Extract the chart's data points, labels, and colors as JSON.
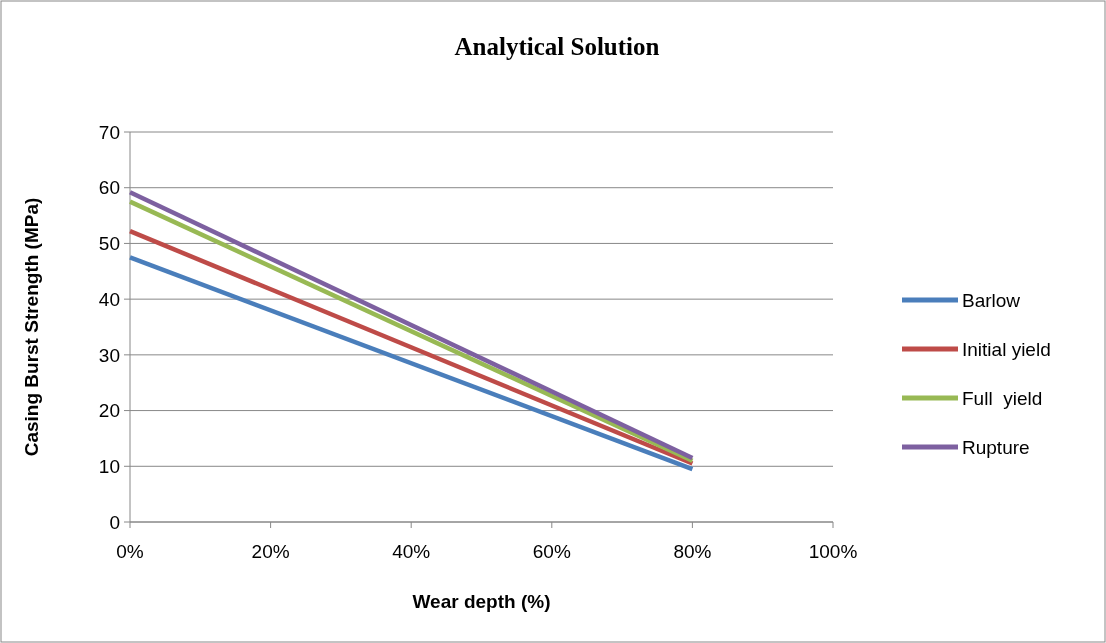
{
  "chart_data": {
    "type": "line",
    "title": "Analytical Solution",
    "xlabel": "Wear depth (%)",
    "ylabel": "Casing Burst Strength (MPa)",
    "x": [
      0,
      80
    ],
    "series": [
      {
        "name": "Barlow",
        "color": "#4a7ebb",
        "values": [
          47.5,
          9.5
        ]
      },
      {
        "name": "Initial yield",
        "color": "#be4b48",
        "values": [
          52.2,
          10.5
        ]
      },
      {
        "name": "Full  yield",
        "color": "#98b954",
        "values": [
          57.5,
          11
        ]
      },
      {
        "name": "Rupture",
        "color": "#7d60a0",
        "values": [
          59.2,
          11.5
        ]
      }
    ],
    "xlim": [
      0,
      100
    ],
    "xticks": [
      {
        "value": 0,
        "label": "0%"
      },
      {
        "value": 20,
        "label": "20%"
      },
      {
        "value": 40,
        "label": "40%"
      },
      {
        "value": 60,
        "label": "60%"
      },
      {
        "value": 80,
        "label": "80%"
      },
      {
        "value": 100,
        "label": "100%"
      }
    ],
    "ylim": [
      0,
      70
    ],
    "yticks": [
      0,
      10,
      20,
      30,
      40,
      50,
      60,
      70
    ],
    "grid": "y",
    "legend": "right",
    "marker": "none",
    "line_style": "solid"
  }
}
